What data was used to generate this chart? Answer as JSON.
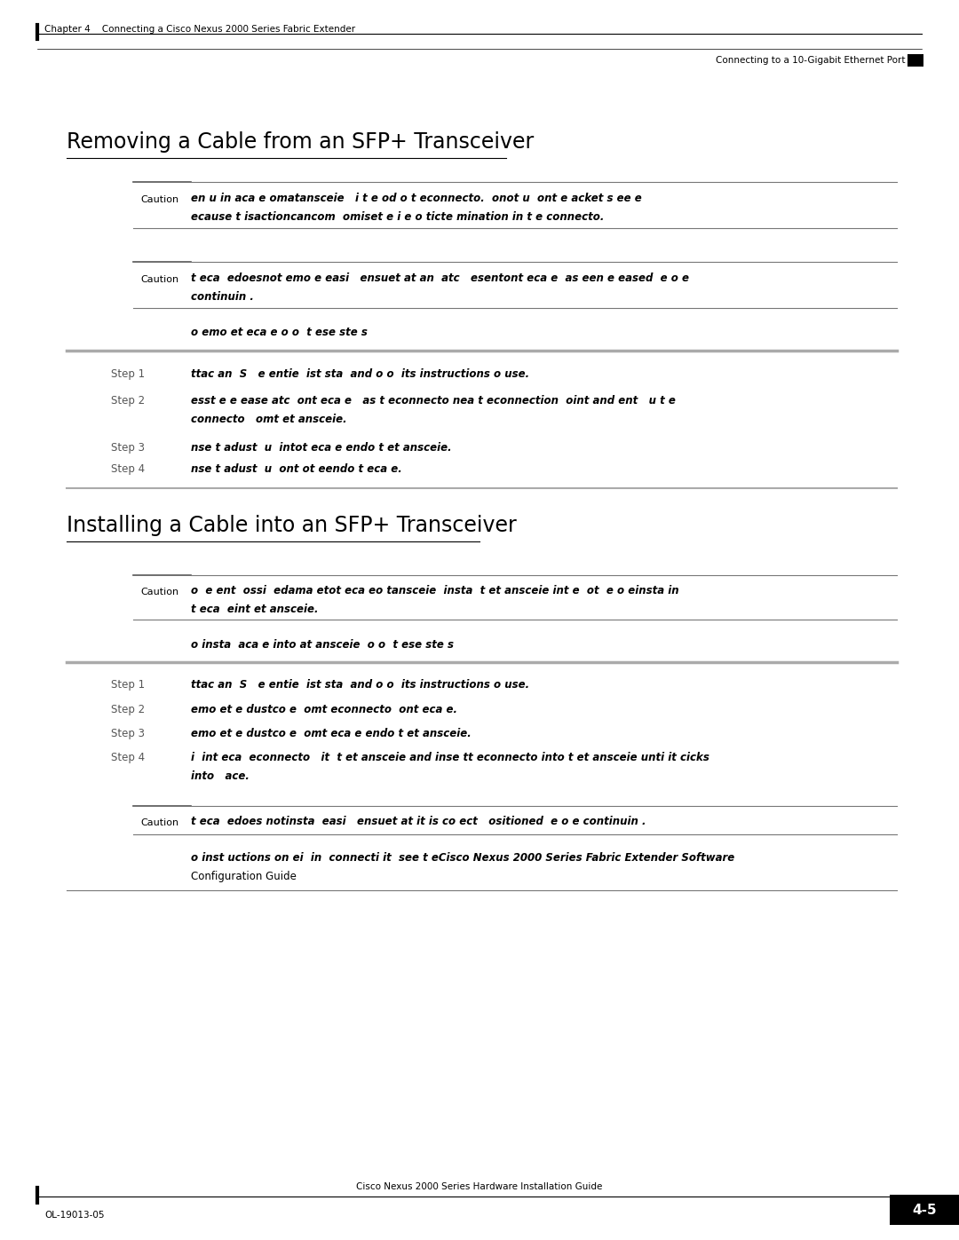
{
  "bg_color": "#ffffff",
  "page_width": 10.8,
  "page_height": 13.97,
  "dpi": 100,
  "header_left": "Chapter 4    Connecting a Cisco Nexus 2000 Series Fabric Extender",
  "header_right": "Connecting to a 10-Gigabit Ethernet Port",
  "footer_left": "OL-19013-05",
  "footer_center": "Cisco Nexus 2000 Series Hardware Installation Guide",
  "footer_right": "4-5",
  "section1_title": "Removing a Cable from an SFP+ Transceiver",
  "section2_title": "Installing a Cable into an SFP+ Transceiver",
  "caution_label": "Caution",
  "c1_line1": "en u in aca e omatansceie   i t e od o t econnecto.  onot u  ont e acket s ee e",
  "c1_line2": "ecause t isactioncancom  omiset e i e o ticte mination in t e connecto.",
  "c2_line1": "t eca  edoesnot emo e easi   ensuet at an  atc   esentont eca e  as een e eased  e o e",
  "c2_line2": "continuin .",
  "proc1_intro": "o emo et eca e o o  t ese ste s",
  "s1_l": "Step 1",
  "s1_t": "ttac an  S   e entie  ist sta  and o o  its instructions o use.",
  "s2_l": "Step 2",
  "s2_t1": "esst e e ease atc  ont eca e   as t econnecto nea t econnection  oint and ent   u t e",
  "s2_t2": "connecto   omt et ansceie.",
  "s3_l": "Step 3",
  "s3_t": "nse t adust  u  intot eca e endo t et ansceie.",
  "s4_l": "Step 4",
  "s4_t": "nse t adust  u  ont ot eendo t eca e.",
  "c3_line1": "o  e ent  ossi  edama etot eca eo tansceie  insta  t et ansceie int e  ot  e o einsta in",
  "c3_line2": "t eca  eint et ansceie.",
  "proc2_intro": "o insta  aca e into at ansceie  o o  t ese ste s",
  "s5_l": "Step 1",
  "s5_t": "ttac an  S   e entie  ist sta  and o o  its instructions o use.",
  "s6_l": "Step 2",
  "s6_t": "emo et e dustco e  omt econnecto  ont eca e.",
  "s7_l": "Step 3",
  "s7_t": "emo et e dustco e  omt eca e endo t et ansceie.",
  "s8_l": "Step 4",
  "s8_t1": "i  int eca  econnecto   it  t et ansceie and inse tt econnecto into t et ansceie unti it cicks",
  "s8_t2": "into   ace.",
  "c4_line1": "t eca  edoes notinsta  easi   ensuet at it is co ect   ositioned  e o e continuin .",
  "fn_line1": "o inst uctions on ei  in  connecti it  see t eCisco Nexus 2000 Series Fabric Extender Software",
  "fn_line2": "Configuration Guide"
}
